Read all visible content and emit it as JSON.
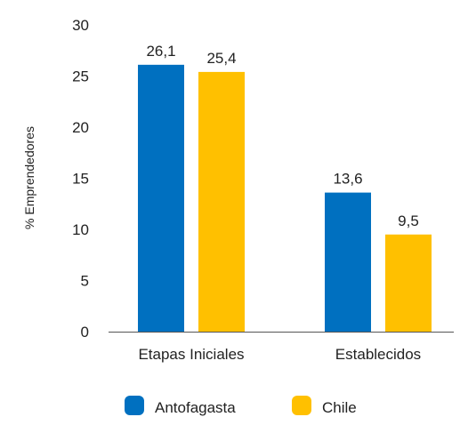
{
  "chart_data": {
    "type": "bar",
    "categories": [
      "Etapas Iniciales",
      "Establecidos"
    ],
    "series": [
      {
        "name": "Antofagasta",
        "values": [
          26.1,
          13.6
        ],
        "labels": [
          "26,1",
          "13,6"
        ],
        "color": "#0070C0"
      },
      {
        "name": "Chile",
        "values": [
          25.4,
          9.5
        ],
        "labels": [
          "25,4",
          "9,5"
        ],
        "color": "#FFC000"
      }
    ],
    "title": "",
    "xlabel": "",
    "ylabel": "% Emprendedores",
    "ylim": [
      0,
      30
    ],
    "yticks": [
      0,
      5,
      10,
      15,
      20,
      25,
      30
    ],
    "grid": false,
    "legend": "bottom"
  }
}
